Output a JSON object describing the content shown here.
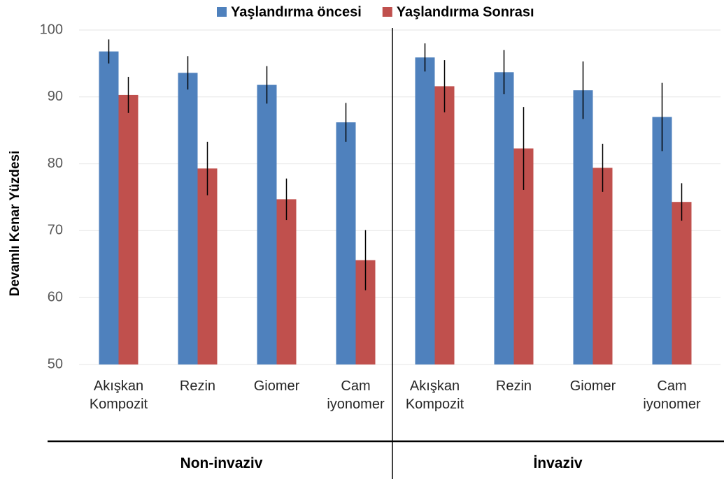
{
  "chart_data": {
    "type": "bar",
    "y_label": "Devamlı Kenar Yüzdesi",
    "categories": [
      "Akışkan Kompozit",
      "Rezin",
      "Giomer",
      "Cam iyonomer",
      "Akışkan Kompozit",
      "Rezin",
      "Giomer",
      "Cam iyonomer"
    ],
    "groups": [
      {
        "label": "Non-invaziv",
        "size": 4
      },
      {
        "label": "İnvaziv",
        "size": 4
      }
    ],
    "series": [
      {
        "name": "Yaşlandırma öncesi",
        "color": "#4f81bd",
        "values": [
          96.8,
          93.6,
          91.8,
          86.2,
          95.9,
          93.7,
          91.0,
          87.0
        ],
        "errors": [
          1.8,
          2.5,
          2.8,
          2.9,
          2.1,
          3.3,
          4.3,
          5.1
        ]
      },
      {
        "name": "Yaşlandırma Sonrası",
        "color": "#c0504d",
        "values": [
          90.3,
          79.3,
          74.7,
          65.6,
          91.6,
          82.3,
          79.4,
          74.3
        ],
        "errors": [
          2.7,
          4.0,
          3.1,
          4.5,
          3.9,
          6.2,
          3.6,
          2.8
        ]
      }
    ],
    "ylim": [
      50,
      100
    ],
    "yticks": [
      50,
      60,
      70,
      80,
      90,
      100
    ],
    "grid": true,
    "legend": "top"
  }
}
